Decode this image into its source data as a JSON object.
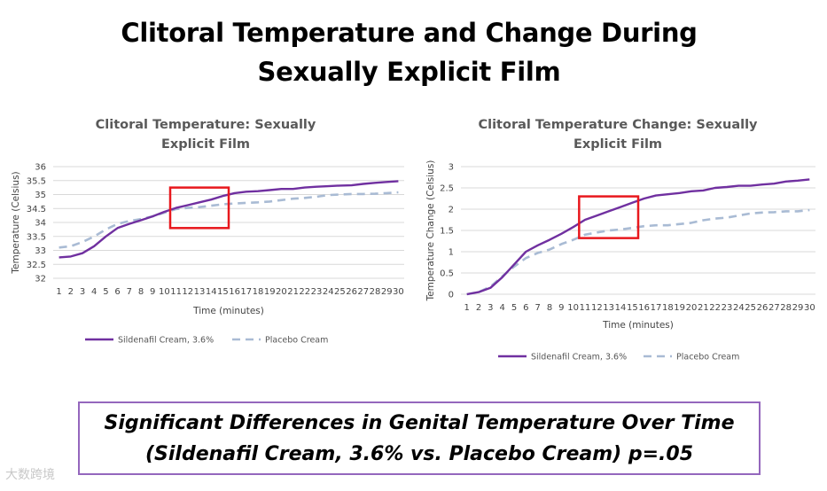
{
  "page": {
    "title_line1": "Clitoral Temperature and Change During",
    "title_line2": "Sexually Explicit Film",
    "callout_line1": "Significant Differences in Genital Temperature Over Time",
    "callout_line2": "(Sildenafil Cream, 3.6% vs. Placebo Cream) p=.05",
    "watermark": "大数跨境"
  },
  "colors": {
    "sildenafil": "#7030a0",
    "placebo": "#a9bbd4",
    "highlight": "#e8181d",
    "callout_border": "#9467bd"
  },
  "chart_data": [
    {
      "type": "line",
      "title_lines": [
        "Clitoral Temperature: Sexually",
        "Explicit Film"
      ],
      "xlabel": "Time (minutes)",
      "ylabel": "Temperature (Celsius)",
      "x": [
        1,
        2,
        3,
        4,
        5,
        6,
        7,
        8,
        9,
        10,
        11,
        12,
        13,
        14,
        15,
        16,
        17,
        18,
        19,
        20,
        21,
        22,
        23,
        24,
        25,
        26,
        27,
        28,
        29,
        30
      ],
      "ylim": [
        32,
        36
      ],
      "yticks": [
        32,
        32.5,
        33,
        33.5,
        34,
        34.5,
        35,
        35.5,
        36
      ],
      "ytick_labels": [
        "32",
        "32.5",
        "33",
        "33.5",
        "34",
        "34.5",
        "35",
        "35.5",
        "36"
      ],
      "grid": true,
      "highlight_box_x": [
        11,
        15
      ],
      "highlight_box_y": [
        33.8,
        35.25
      ],
      "series": [
        {
          "name": "Sildenafil Cream, 3.6%",
          "style": "solid",
          "values": [
            32.75,
            32.78,
            32.9,
            33.15,
            33.5,
            33.8,
            33.95,
            34.08,
            34.22,
            34.38,
            34.52,
            34.62,
            34.72,
            34.82,
            34.95,
            35.05,
            35.1,
            35.12,
            35.16,
            35.2,
            35.2,
            35.25,
            35.28,
            35.3,
            35.32,
            35.33,
            35.38,
            35.42,
            35.45,
            35.48
          ]
        },
        {
          "name": "Placebo Cream",
          "style": "dashed",
          "values": [
            33.1,
            33.15,
            33.3,
            33.5,
            33.75,
            33.95,
            34.05,
            34.12,
            34.22,
            34.35,
            34.48,
            34.52,
            34.55,
            34.6,
            34.65,
            34.68,
            34.7,
            34.72,
            34.75,
            34.8,
            34.85,
            34.88,
            34.92,
            34.98,
            35.0,
            35.02,
            35.02,
            35.03,
            35.05,
            35.08
          ]
        }
      ]
    },
    {
      "type": "line",
      "title_lines": [
        "Clitoral Temperature Change: Sexually",
        "Explicit Film"
      ],
      "xlabel": "Time (minutes)",
      "ylabel": "Temperature Change (Celsius)",
      "x": [
        1,
        2,
        3,
        4,
        5,
        6,
        7,
        8,
        9,
        10,
        11,
        12,
        13,
        14,
        15,
        16,
        17,
        18,
        19,
        20,
        21,
        22,
        23,
        24,
        25,
        26,
        27,
        28,
        29,
        30
      ],
      "ylim": [
        0,
        3
      ],
      "yticks": [
        0,
        0.5,
        1,
        1.5,
        2,
        2.5,
        3
      ],
      "ytick_labels": [
        "0",
        "0.5",
        "1",
        "1.5",
        "2",
        "2.5",
        "3"
      ],
      "grid": true,
      "highlight_box_x": [
        11,
        15
      ],
      "highlight_box_y": [
        1.32,
        2.3
      ],
      "series": [
        {
          "name": "Sildenafil Cream, 3.6%",
          "style": "solid",
          "values": [
            0,
            0.05,
            0.15,
            0.4,
            0.7,
            1.0,
            1.15,
            1.28,
            1.42,
            1.58,
            1.75,
            1.85,
            1.95,
            2.05,
            2.15,
            2.25,
            2.32,
            2.35,
            2.38,
            2.42,
            2.44,
            2.5,
            2.52,
            2.55,
            2.55,
            2.58,
            2.6,
            2.65,
            2.67,
            2.7
          ]
        },
        {
          "name": "Placebo Cream",
          "style": "dashed",
          "values": [
            0,
            0.05,
            0.18,
            0.42,
            0.65,
            0.85,
            0.97,
            1.05,
            1.18,
            1.28,
            1.4,
            1.45,
            1.5,
            1.52,
            1.56,
            1.6,
            1.62,
            1.62,
            1.65,
            1.68,
            1.74,
            1.78,
            1.8,
            1.85,
            1.9,
            1.92,
            1.93,
            1.95,
            1.95,
            1.98
          ]
        }
      ]
    }
  ]
}
